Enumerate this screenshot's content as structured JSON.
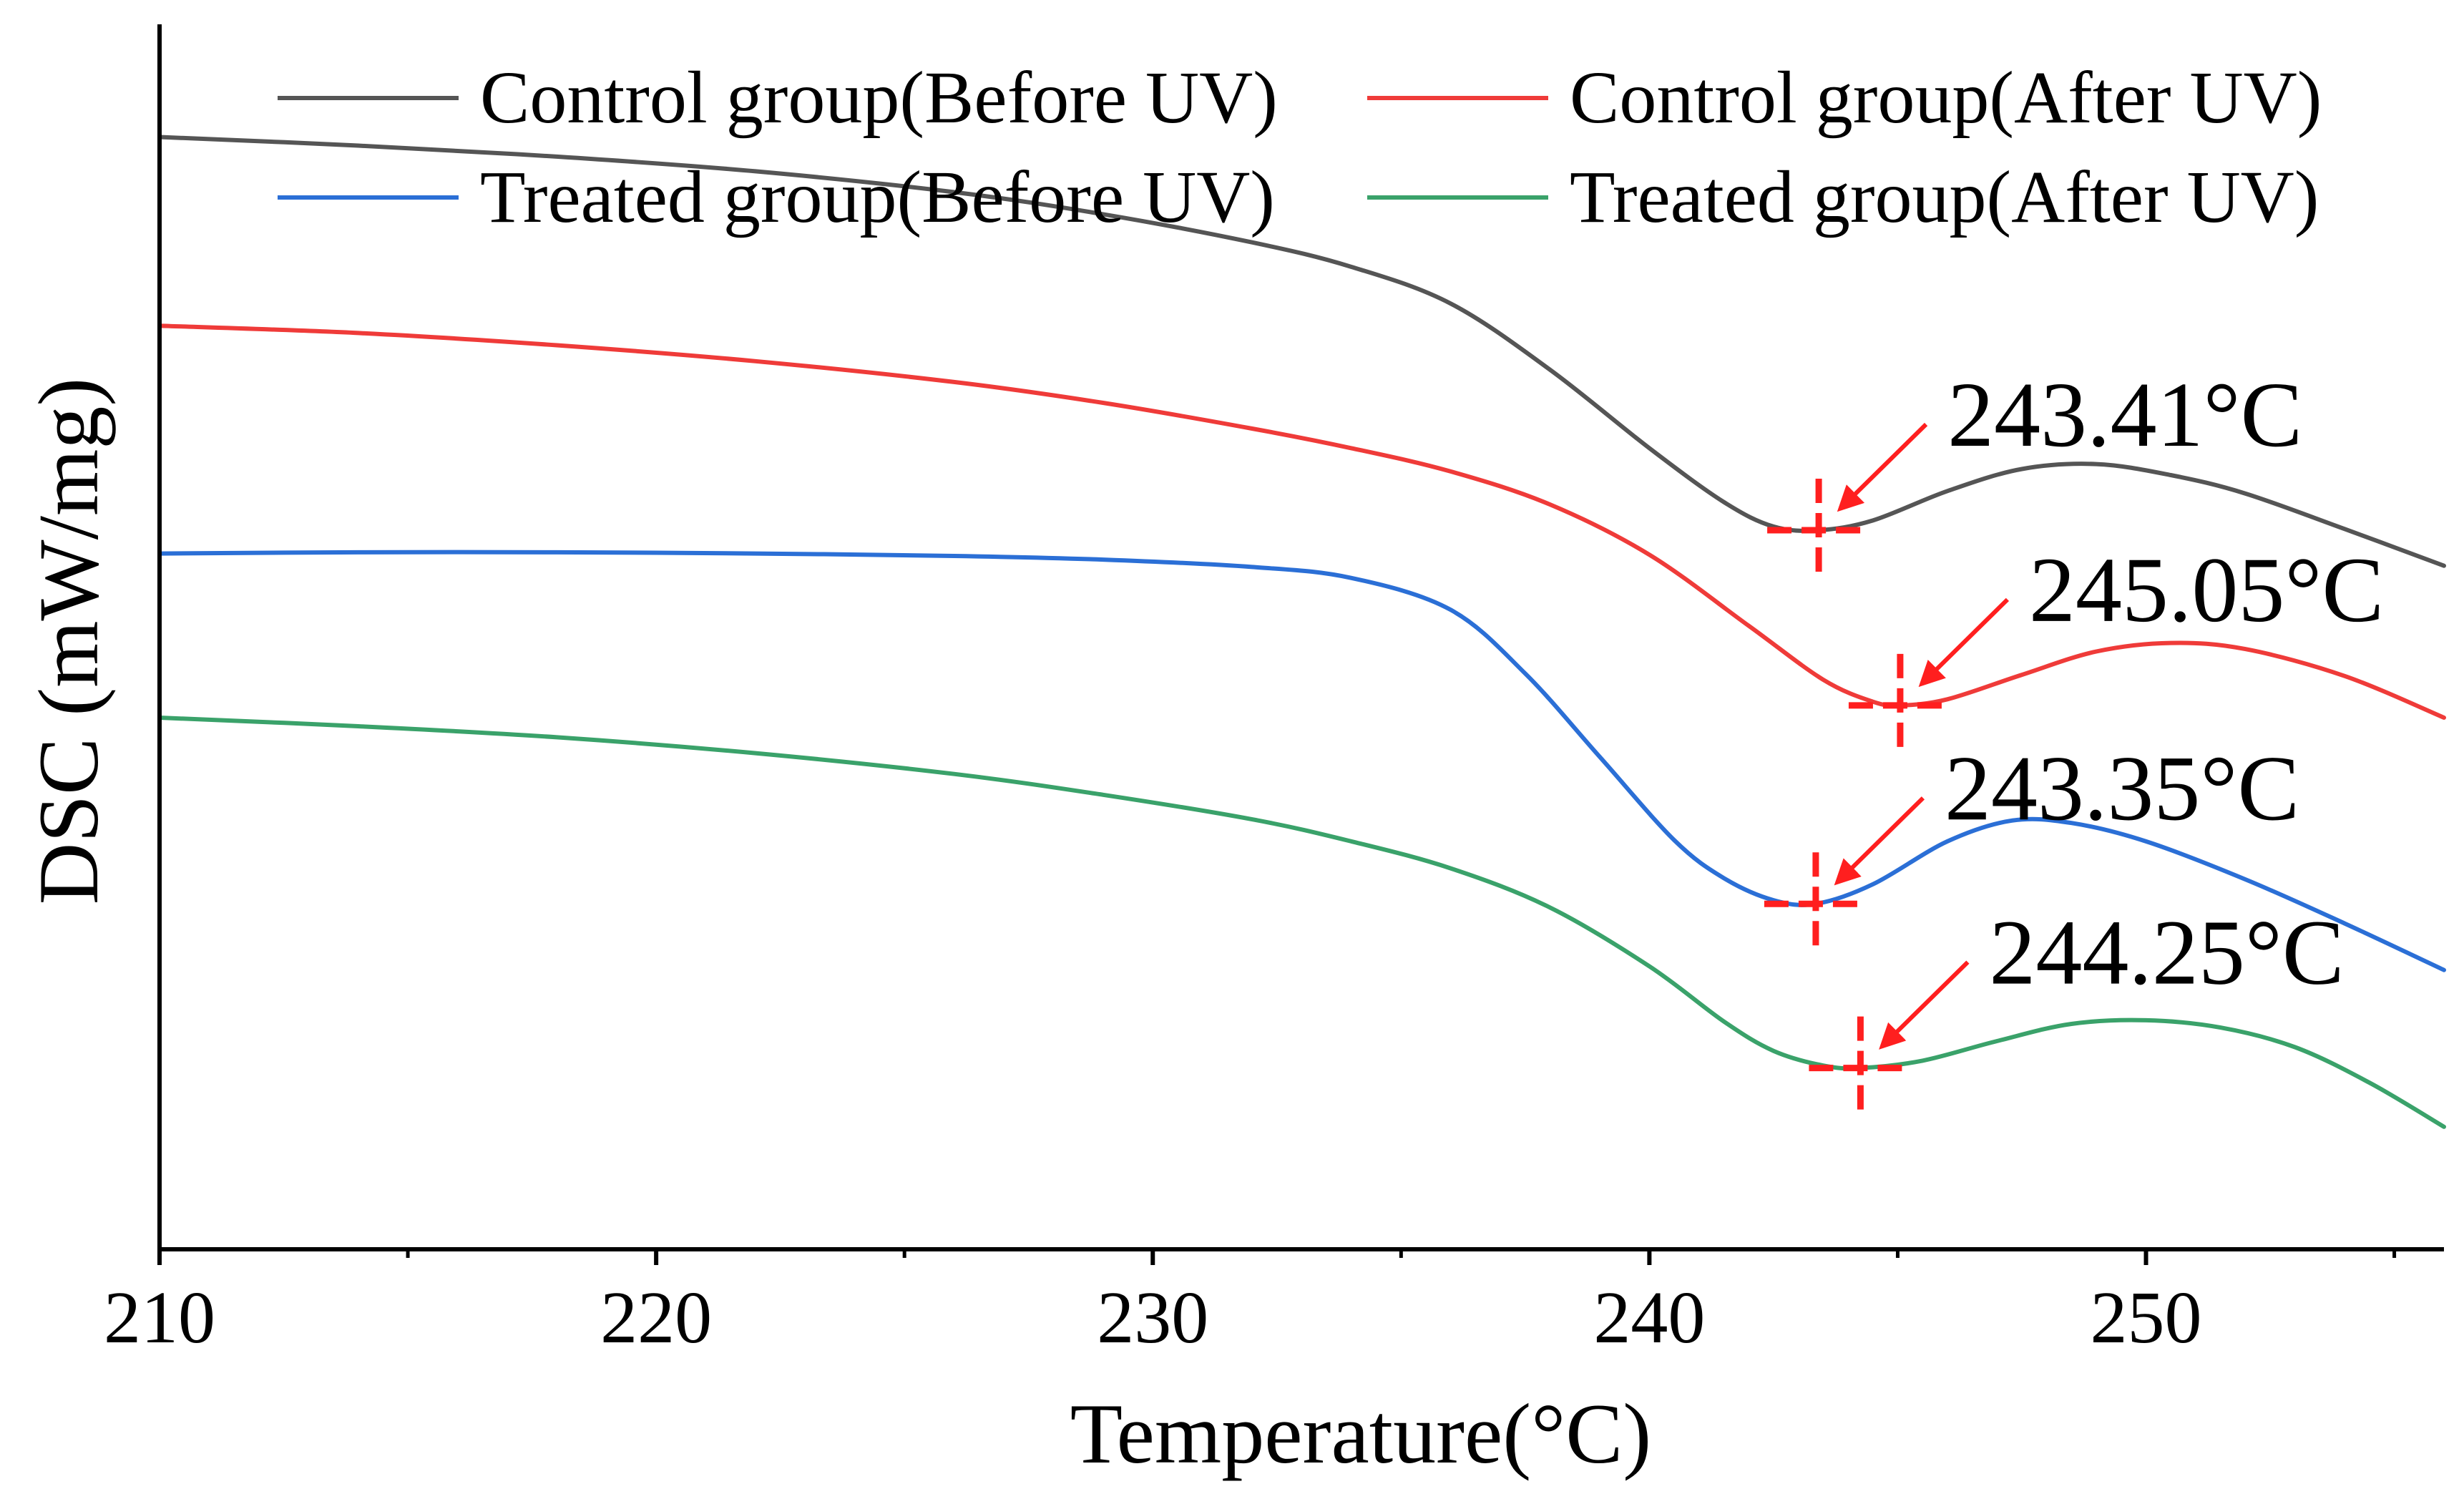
{
  "chart_data": {
    "type": "line",
    "title": "",
    "xlabel": "Temperature(°C)",
    "ylabel": "DSC (mW/mg)",
    "xlim": [
      210,
      256
    ],
    "xticks": [
      210,
      220,
      230,
      240,
      250
    ],
    "xtick_labels": [
      "210",
      "220",
      "230",
      "240",
      "250"
    ],
    "y_tick_labels_shown": false,
    "ylim": [
      0,
      100
    ],
    "y_units": "relative (offset curves, no y scale printed)",
    "legend_position": "top-right",
    "grid": false,
    "series": [
      {
        "name": "Control group(Before UV)",
        "color": "#555555",
        "points": [
          [
            210,
            90.8
          ],
          [
            214,
            90.1
          ],
          [
            218,
            89.2
          ],
          [
            222,
            88.0
          ],
          [
            226,
            86.3
          ],
          [
            229,
            84.5
          ],
          [
            232,
            82.2
          ],
          [
            234,
            80.2
          ],
          [
            236,
            77.2
          ],
          [
            238,
            71.8
          ],
          [
            240,
            65.4
          ],
          [
            241.5,
            61.0
          ],
          [
            242.5,
            59.0
          ],
          [
            243.41,
            58.7
          ],
          [
            244.5,
            59.5
          ],
          [
            246,
            61.9
          ],
          [
            247.5,
            63.7
          ],
          [
            249,
            64.1
          ],
          [
            250.5,
            63.2
          ],
          [
            252,
            61.7
          ],
          [
            254,
            58.8
          ],
          [
            256,
            55.8
          ]
        ]
      },
      {
        "name": "Control group(After UV)",
        "color": "#ef3b39",
        "points": [
          [
            210,
            75.4
          ],
          [
            214,
            74.8
          ],
          [
            218,
            73.8
          ],
          [
            222,
            72.5
          ],
          [
            226,
            70.8
          ],
          [
            229,
            69.1
          ],
          [
            232,
            67.0
          ],
          [
            234,
            65.4
          ],
          [
            236,
            63.5
          ],
          [
            238,
            60.8
          ],
          [
            240,
            56.7
          ],
          [
            242,
            50.9
          ],
          [
            243.5,
            46.5
          ],
          [
            244.5,
            44.7
          ],
          [
            245.05,
            44.4
          ],
          [
            246,
            44.9
          ],
          [
            247.5,
            46.9
          ],
          [
            249,
            48.8
          ],
          [
            250.5,
            49.5
          ],
          [
            252,
            49.0
          ],
          [
            254,
            46.8
          ],
          [
            256,
            43.4
          ]
        ]
      },
      {
        "name": "Treated group(Before UV)",
        "color": "#2b6fd6",
        "points": [
          [
            210,
            56.8
          ],
          [
            214,
            56.9
          ],
          [
            218,
            56.9
          ],
          [
            222,
            56.8
          ],
          [
            226,
            56.6
          ],
          [
            229,
            56.3
          ],
          [
            232,
            55.7
          ],
          [
            234,
            54.8
          ],
          [
            236,
            52.2
          ],
          [
            237.5,
            47.0
          ],
          [
            239,
            40.2
          ],
          [
            240.5,
            33.4
          ],
          [
            241.5,
            30.3
          ],
          [
            242.5,
            28.5
          ],
          [
            243.35,
            28.2
          ],
          [
            244.5,
            29.8
          ],
          [
            246,
            33.3
          ],
          [
            247.3,
            35.0
          ],
          [
            248.5,
            34.8
          ],
          [
            250,
            33.3
          ],
          [
            252,
            30.2
          ],
          [
            254,
            26.6
          ],
          [
            256,
            22.8
          ]
        ]
      },
      {
        "name": "Treated group(After UV)",
        "color": "#3aa26a",
        "points": [
          [
            210,
            43.4
          ],
          [
            214,
            42.7
          ],
          [
            218,
            41.8
          ],
          [
            222,
            40.5
          ],
          [
            226,
            38.8
          ],
          [
            229,
            37.1
          ],
          [
            232,
            35.1
          ],
          [
            234,
            33.3
          ],
          [
            236,
            31.1
          ],
          [
            238,
            27.9
          ],
          [
            240,
            23.1
          ],
          [
            241.5,
            18.6
          ],
          [
            242.5,
            16.2
          ],
          [
            243.5,
            15.0
          ],
          [
            244.25,
            14.8
          ],
          [
            245.5,
            15.4
          ],
          [
            247,
            17.0
          ],
          [
            248.5,
            18.4
          ],
          [
            250,
            18.7
          ],
          [
            251.5,
            18.1
          ],
          [
            253,
            16.5
          ],
          [
            254.5,
            13.6
          ],
          [
            256,
            10.0
          ]
        ]
      }
    ],
    "annotations": [
      {
        "label": "243.41°C",
        "series_index": 0,
        "x": 243.41,
        "y": 58.7
      },
      {
        "label": "245.05°C",
        "series_index": 1,
        "x": 245.05,
        "y": 44.4
      },
      {
        "label": "243.35°C",
        "series_index": 2,
        "x": 243.35,
        "y": 28.2
      },
      {
        "label": "244.25°C",
        "series_index": 3,
        "x": 244.25,
        "y": 14.8
      }
    ],
    "marker_color": "#ff1f1f"
  }
}
